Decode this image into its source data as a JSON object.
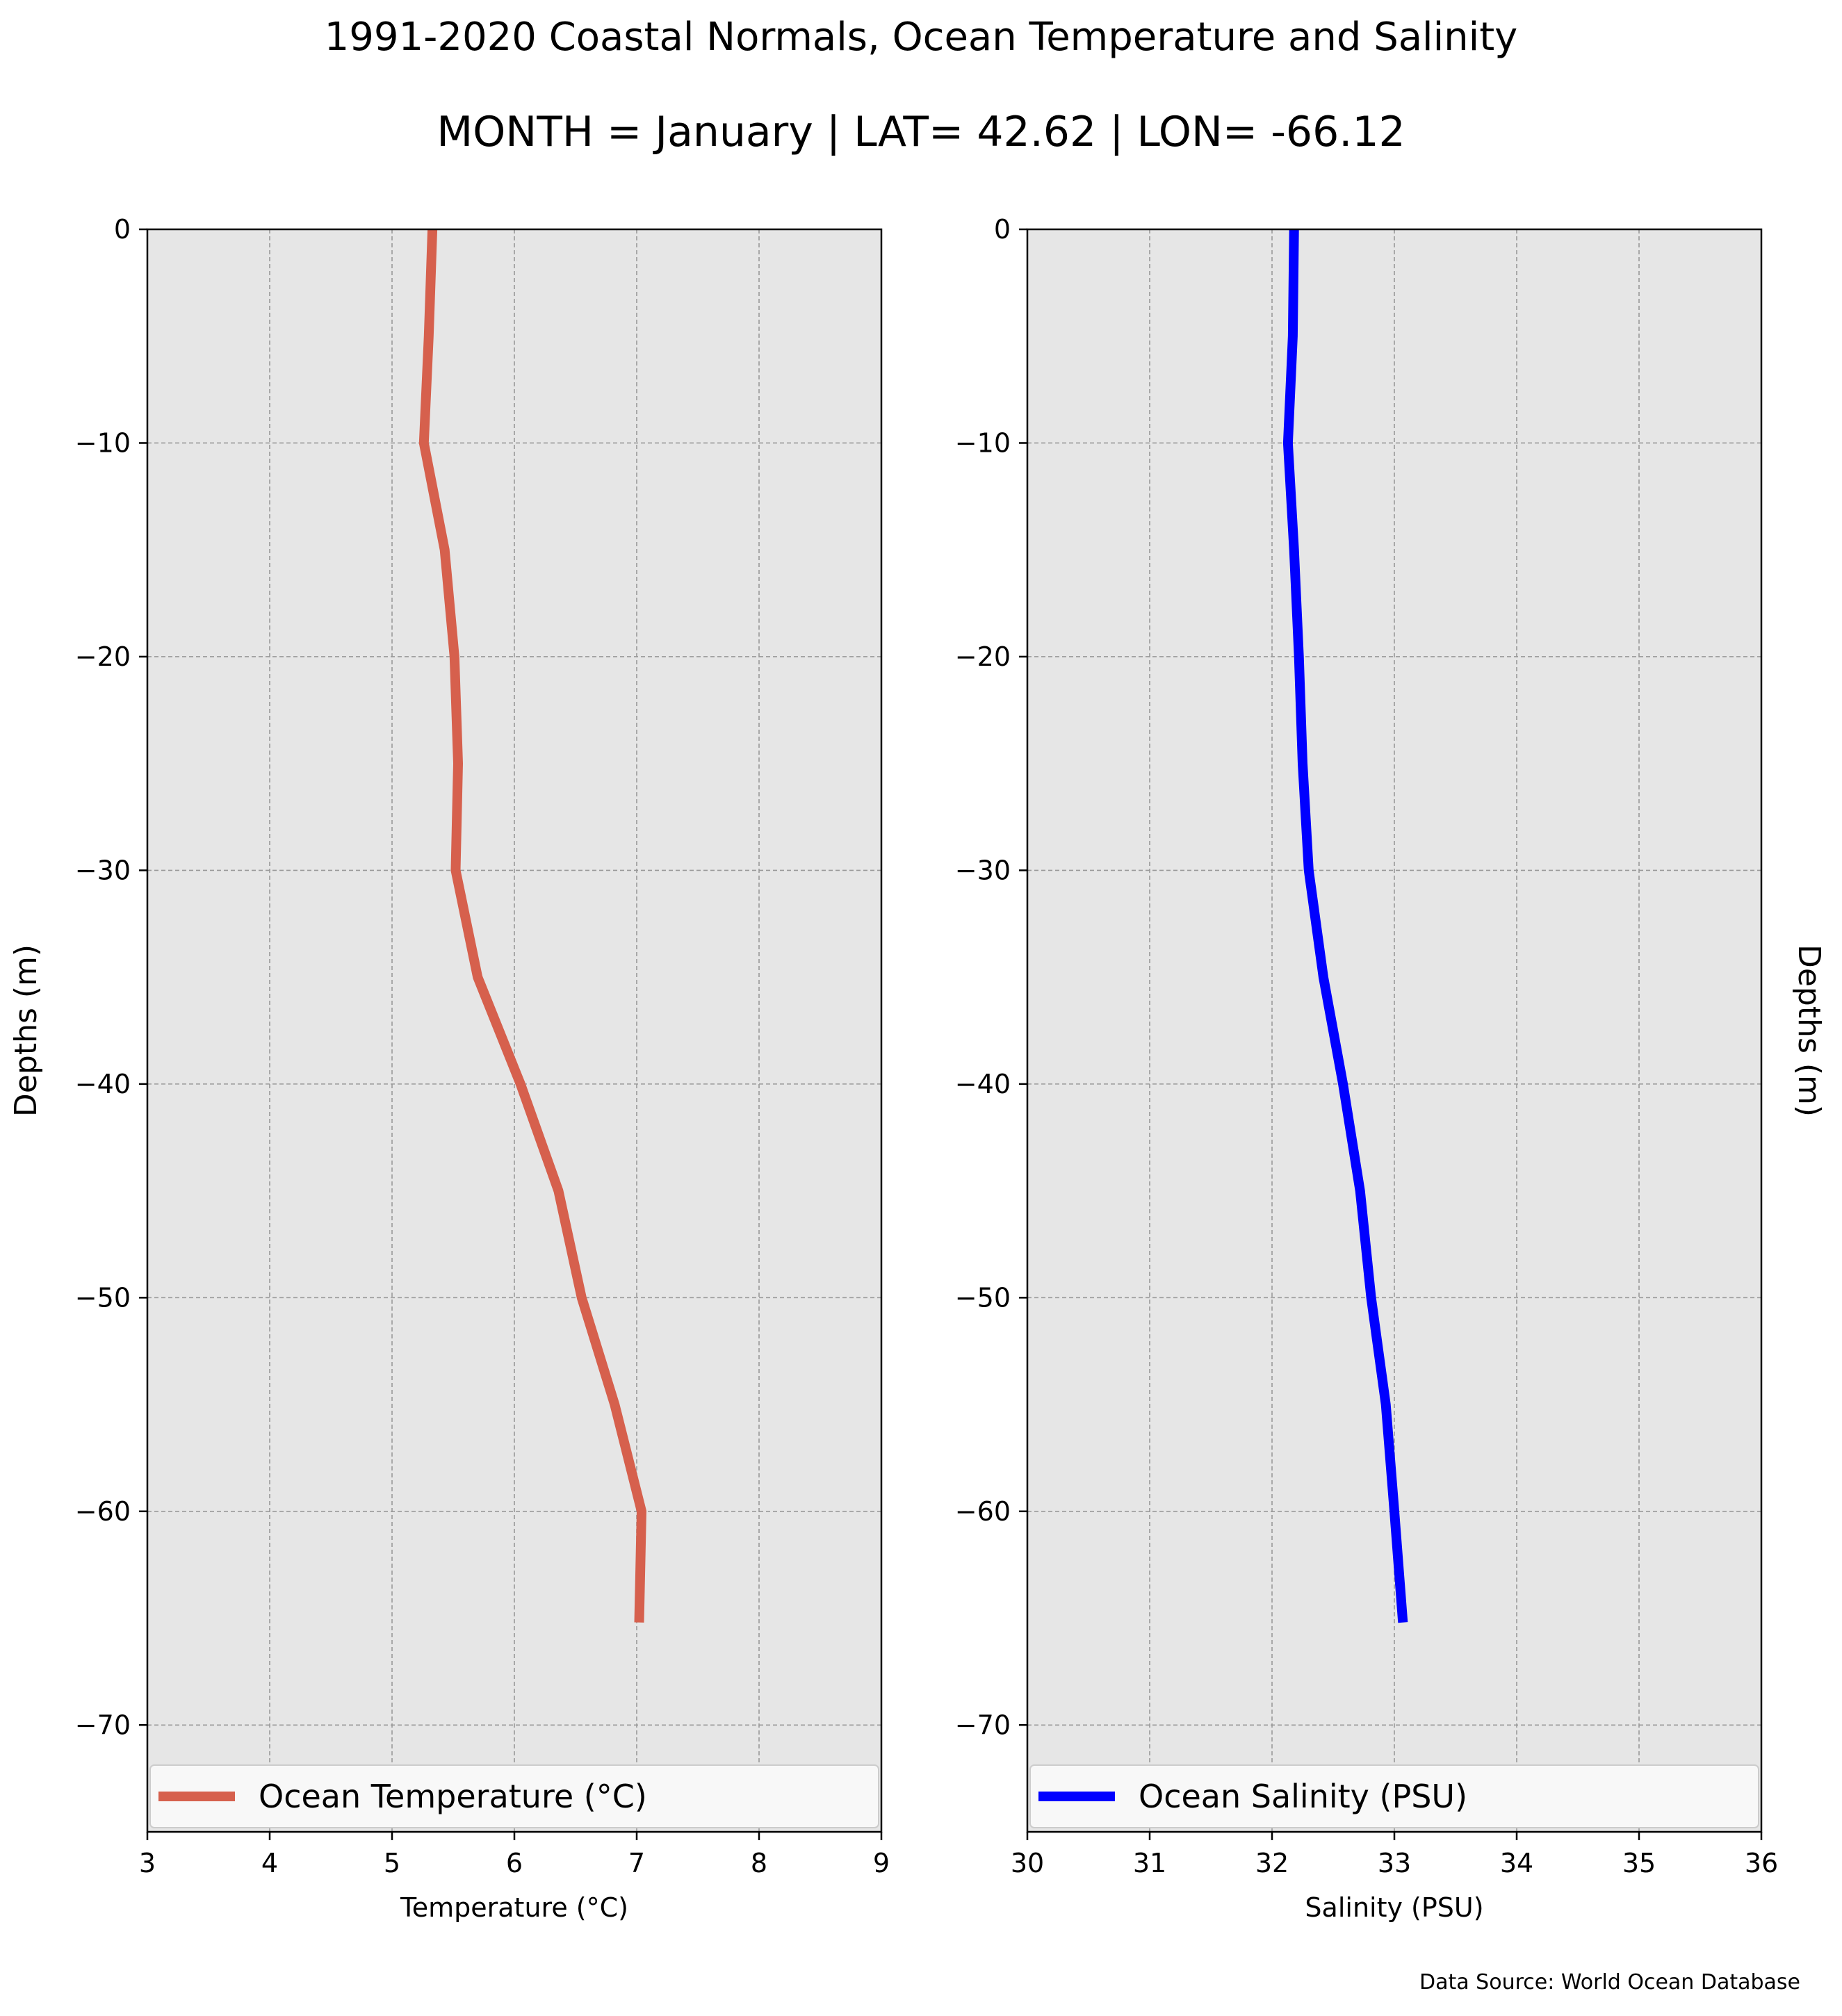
{
  "figure": {
    "title": "1991-2020 Coastal Normals, Ocean Temperature and Salinity",
    "subtitle": "MONTH = January | LAT= 42.62 | LON= -66.12",
    "source": "Data Source: World Ocean Database"
  },
  "chart_data": [
    {
      "type": "line",
      "orientation": "vertical-profile",
      "xlabel": "Temperature ($^\\circ$C)",
      "xlabel_display": "Temperature (°C)",
      "ylabel": "Depths (m)",
      "xlim": [
        3,
        9
      ],
      "ylim": [
        -75,
        0
      ],
      "xticks": [
        3,
        4,
        5,
        6,
        7,
        8,
        9
      ],
      "yticks": [
        0,
        -10,
        -20,
        -30,
        -40,
        -50,
        -60,
        -70
      ],
      "ytick_labels": [
        "0",
        "−10",
        "−20",
        "−30",
        "−40",
        "−50",
        "−60",
        "−70"
      ],
      "grid": true,
      "legend_position": "bottom",
      "series": [
        {
          "name": "Ocean Temperature (°C)",
          "color": "#d6604d",
          "points": [
            {
              "x": 5.33,
              "y": 0
            },
            {
              "x": 5.3,
              "y": -5
            },
            {
              "x": 5.26,
              "y": -10
            },
            {
              "x": 5.43,
              "y": -15
            },
            {
              "x": 5.51,
              "y": -20
            },
            {
              "x": 5.54,
              "y": -25
            },
            {
              "x": 5.52,
              "y": -30
            },
            {
              "x": 5.7,
              "y": -35
            },
            {
              "x": 6.05,
              "y": -40
            },
            {
              "x": 6.36,
              "y": -45
            },
            {
              "x": 6.55,
              "y": -50
            },
            {
              "x": 6.82,
              "y": -55
            },
            {
              "x": 7.04,
              "y": -60
            },
            {
              "x": 7.02,
              "y": -65.2
            }
          ]
        }
      ]
    },
    {
      "type": "line",
      "orientation": "vertical-profile",
      "xlabel": "Salinity (PSU)",
      "ylabel": "Depths (m)",
      "xlim": [
        30,
        36
      ],
      "ylim": [
        -75,
        0
      ],
      "xticks": [
        30,
        31,
        32,
        33,
        34,
        35,
        36
      ],
      "yticks": [
        0,
        -10,
        -20,
        -30,
        -40,
        -50,
        -60,
        -70
      ],
      "ytick_labels": [
        "0",
        "−10",
        "−20",
        "−30",
        "−40",
        "−50",
        "−60",
        "−70"
      ],
      "grid": true,
      "legend_position": "bottom",
      "series": [
        {
          "name": "Ocean Salinity (PSU)",
          "color": "#0000ff",
          "points": [
            {
              "x": 32.18,
              "y": 0
            },
            {
              "x": 32.17,
              "y": -5
            },
            {
              "x": 32.13,
              "y": -10
            },
            {
              "x": 32.18,
              "y": -15
            },
            {
              "x": 32.22,
              "y": -20
            },
            {
              "x": 32.25,
              "y": -25
            },
            {
              "x": 32.3,
              "y": -30
            },
            {
              "x": 32.42,
              "y": -35
            },
            {
              "x": 32.58,
              "y": -40
            },
            {
              "x": 32.72,
              "y": -45
            },
            {
              "x": 32.81,
              "y": -50
            },
            {
              "x": 32.93,
              "y": -55
            },
            {
              "x": 33.0,
              "y": -60
            },
            {
              "x": 33.07,
              "y": -65.2
            }
          ]
        }
      ]
    }
  ]
}
